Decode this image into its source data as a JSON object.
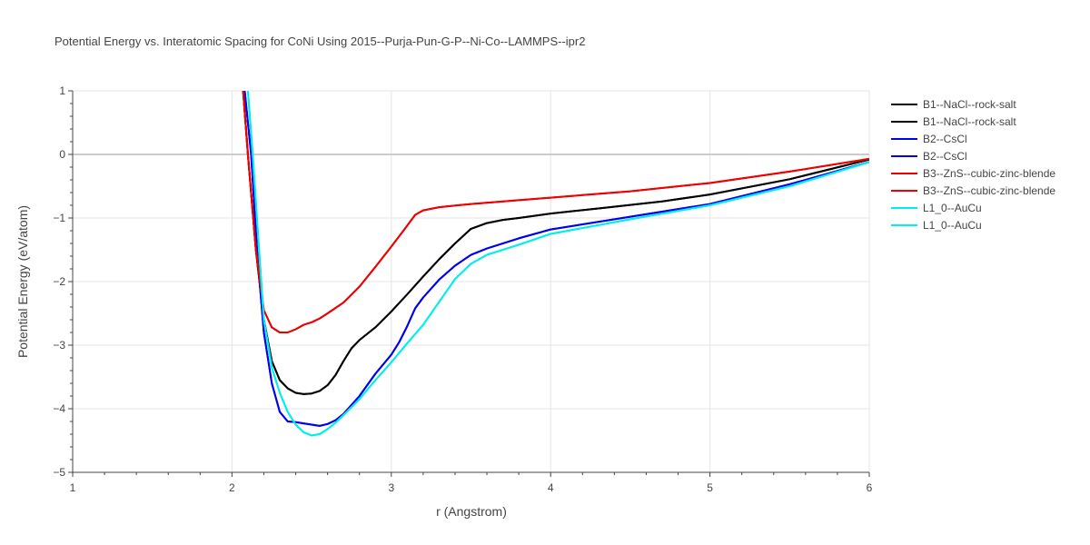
{
  "chart_data": {
    "type": "line",
    "title": "Potential Energy vs. Interatomic Spacing for CoNi Using 2015--Purja-Pun-G-P--Ni-Co--LAMMPS--ipr2",
    "xlabel": "r (Angstrom)",
    "ylabel": "Potential Energy (eV/atom)",
    "xlim": [
      1,
      6
    ],
    "ylim": [
      -5,
      1
    ],
    "xticks": [
      1,
      2,
      3,
      4,
      5,
      6
    ],
    "yticks": [
      1,
      0,
      -1,
      -2,
      -3,
      -4,
      -5
    ],
    "xtick_labels": [
      "1",
      "2",
      "3",
      "4",
      "5",
      "6"
    ],
    "ytick_labels": [
      "1",
      "0",
      "−1",
      "−2",
      "−3",
      "−4",
      "−5"
    ],
    "grid": true,
    "legend_position": "top-right",
    "series": [
      {
        "name": "B1--NaCl--rock-salt",
        "color": "#000000",
        "x": [
          2.07,
          2.1,
          2.15,
          2.2,
          2.25,
          2.3,
          2.35,
          2.4,
          2.45,
          2.5,
          2.55,
          2.6,
          2.65,
          2.7,
          2.75,
          2.8,
          2.9,
          3.0,
          3.1,
          3.2,
          3.3,
          3.4,
          3.5,
          3.6,
          3.7,
          3.8,
          4.0,
          4.3,
          4.7,
          5.0,
          5.5,
          6.0
        ],
        "y": [
          1.0,
          0.0,
          -1.5,
          -2.6,
          -3.25,
          -3.55,
          -3.68,
          -3.75,
          -3.77,
          -3.76,
          -3.72,
          -3.63,
          -3.47,
          -3.25,
          -3.05,
          -2.92,
          -2.72,
          -2.47,
          -2.2,
          -1.92,
          -1.65,
          -1.4,
          -1.17,
          -1.08,
          -1.03,
          -1.0,
          -0.93,
          -0.85,
          -0.74,
          -0.63,
          -0.39,
          -0.08
        ]
      },
      {
        "name": "B1--NaCl--rock-salt",
        "color": "#000000",
        "x": [
          2.07,
          2.1,
          2.15,
          2.2,
          2.25,
          2.3,
          2.35,
          2.4,
          2.45,
          2.5,
          2.55,
          2.6,
          2.65,
          2.7,
          2.75,
          2.8,
          2.9,
          3.0,
          3.1,
          3.2,
          3.3,
          3.4,
          3.5,
          3.6,
          3.7,
          3.8,
          4.0,
          4.3,
          4.7,
          5.0,
          5.5,
          6.0
        ],
        "y": [
          1.0,
          0.0,
          -1.5,
          -2.6,
          -3.25,
          -3.55,
          -3.68,
          -3.75,
          -3.77,
          -3.76,
          -3.72,
          -3.63,
          -3.47,
          -3.25,
          -3.05,
          -2.92,
          -2.72,
          -2.47,
          -2.2,
          -1.92,
          -1.65,
          -1.4,
          -1.17,
          -1.08,
          -1.03,
          -1.0,
          -0.93,
          -0.85,
          -0.74,
          -0.63,
          -0.39,
          -0.08
        ]
      },
      {
        "name": "B2--CsCl",
        "color": "#0000ee",
        "x": [
          2.08,
          2.12,
          2.16,
          2.2,
          2.25,
          2.3,
          2.35,
          2.4,
          2.45,
          2.5,
          2.55,
          2.6,
          2.65,
          2.7,
          2.8,
          2.9,
          3.0,
          3.05,
          3.1,
          3.15,
          3.2,
          3.3,
          3.4,
          3.5,
          3.6,
          3.8,
          4.0,
          4.5,
          5.0,
          5.5,
          6.0
        ],
        "y": [
          1.0,
          0.0,
          -1.6,
          -2.8,
          -3.6,
          -4.05,
          -4.2,
          -4.21,
          -4.23,
          -4.25,
          -4.27,
          -4.24,
          -4.18,
          -4.08,
          -3.8,
          -3.45,
          -3.15,
          -2.95,
          -2.7,
          -2.42,
          -2.25,
          -1.97,
          -1.75,
          -1.58,
          -1.48,
          -1.32,
          -1.18,
          -0.98,
          -0.78,
          -0.47,
          -0.12
        ]
      },
      {
        "name": "B2--CsCl",
        "color": "#0000ee",
        "x": [
          2.08,
          2.12,
          2.16,
          2.2,
          2.25,
          2.3,
          2.35,
          2.4,
          2.45,
          2.5,
          2.55,
          2.6,
          2.65,
          2.7,
          2.8,
          2.9,
          3.0,
          3.05,
          3.1,
          3.15,
          3.2,
          3.3,
          3.4,
          3.5,
          3.6,
          3.8,
          4.0,
          4.5,
          5.0,
          5.5,
          6.0
        ],
        "y": [
          1.0,
          0.0,
          -1.6,
          -2.8,
          -3.6,
          -4.05,
          -4.2,
          -4.21,
          -4.23,
          -4.25,
          -4.27,
          -4.24,
          -4.18,
          -4.08,
          -3.8,
          -3.45,
          -3.15,
          -2.95,
          -2.7,
          -2.42,
          -2.25,
          -1.97,
          -1.75,
          -1.58,
          -1.48,
          -1.32,
          -1.18,
          -0.98,
          -0.78,
          -0.47,
          -0.12
        ]
      },
      {
        "name": "B3--ZnS--cubic-zinc-blende",
        "color": "#ee0000",
        "x": [
          2.07,
          2.1,
          2.15,
          2.2,
          2.25,
          2.3,
          2.35,
          2.4,
          2.45,
          2.5,
          2.55,
          2.6,
          2.7,
          2.8,
          2.9,
          3.0,
          3.1,
          3.15,
          3.2,
          3.3,
          3.5,
          3.8,
          4.0,
          4.5,
          5.0,
          5.5,
          6.0
        ],
        "y": [
          1.0,
          0.0,
          -1.5,
          -2.45,
          -2.72,
          -2.8,
          -2.8,
          -2.75,
          -2.68,
          -2.64,
          -2.58,
          -2.5,
          -2.33,
          -2.08,
          -1.77,
          -1.45,
          -1.12,
          -0.95,
          -0.88,
          -0.83,
          -0.78,
          -0.72,
          -0.68,
          -0.58,
          -0.45,
          -0.27,
          -0.07
        ]
      },
      {
        "name": "B3--ZnS--cubic-zinc-blende",
        "color": "#ee0000",
        "x": [
          2.07,
          2.1,
          2.15,
          2.2,
          2.25,
          2.3,
          2.35,
          2.4,
          2.45,
          2.5,
          2.55,
          2.6,
          2.7,
          2.8,
          2.9,
          3.0,
          3.1,
          3.15,
          3.2,
          3.3,
          3.5,
          3.8,
          4.0,
          4.5,
          5.0,
          5.5,
          6.0
        ],
        "y": [
          1.0,
          0.0,
          -1.5,
          -2.45,
          -2.72,
          -2.8,
          -2.8,
          -2.75,
          -2.68,
          -2.64,
          -2.58,
          -2.5,
          -2.33,
          -2.08,
          -1.77,
          -1.45,
          -1.12,
          -0.95,
          -0.88,
          -0.83,
          -0.78,
          -0.72,
          -0.68,
          -0.58,
          -0.45,
          -0.27,
          -0.07
        ]
      },
      {
        "name": "L1_0--AuCu",
        "color": "#00eeee",
        "x": [
          2.1,
          2.13,
          2.17,
          2.2,
          2.25,
          2.3,
          2.35,
          2.4,
          2.45,
          2.5,
          2.55,
          2.6,
          2.65,
          2.7,
          2.8,
          2.9,
          3.0,
          3.1,
          3.2,
          3.3,
          3.4,
          3.5,
          3.6,
          3.8,
          4.0,
          4.5,
          5.0,
          5.5,
          6.0
        ],
        "y": [
          1.0,
          0.0,
          -1.5,
          -2.6,
          -3.35,
          -3.75,
          -4.05,
          -4.25,
          -4.37,
          -4.42,
          -4.4,
          -4.32,
          -4.22,
          -4.1,
          -3.85,
          -3.55,
          -3.27,
          -2.97,
          -2.68,
          -2.32,
          -1.96,
          -1.72,
          -1.58,
          -1.42,
          -1.25,
          -1.02,
          -0.8,
          -0.5,
          -0.12
        ]
      },
      {
        "name": "L1_0--AuCu",
        "color": "#00eeee",
        "x": [
          2.1,
          2.13,
          2.17,
          2.2,
          2.25,
          2.3,
          2.35,
          2.4,
          2.45,
          2.5,
          2.55,
          2.6,
          2.65,
          2.7,
          2.8,
          2.9,
          3.0,
          3.1,
          3.2,
          3.3,
          3.4,
          3.5,
          3.6,
          3.8,
          4.0,
          4.5,
          5.0,
          5.5,
          6.0
        ],
        "y": [
          1.0,
          0.0,
          -1.5,
          -2.6,
          -3.35,
          -3.75,
          -4.05,
          -4.25,
          -4.37,
          -4.42,
          -4.4,
          -4.32,
          -4.22,
          -4.1,
          -3.85,
          -3.55,
          -3.27,
          -2.97,
          -2.68,
          -2.32,
          -1.96,
          -1.72,
          -1.58,
          -1.42,
          -1.25,
          -1.02,
          -0.8,
          -0.5,
          -0.12
        ]
      }
    ]
  }
}
